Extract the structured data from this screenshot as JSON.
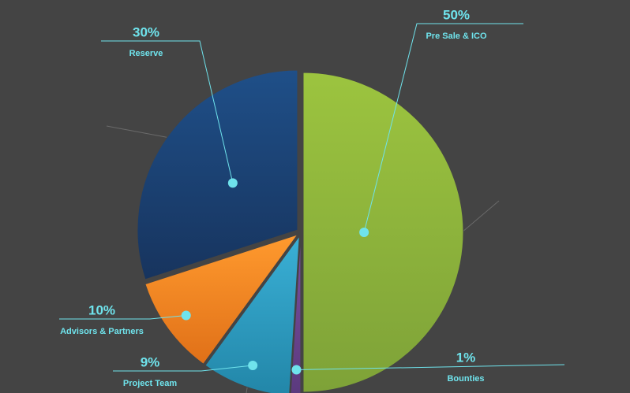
{
  "chart_data": {
    "type": "pie",
    "slices": [
      {
        "label": "Pre Sale & ICO",
        "value": 50,
        "display": "50%",
        "color": "#9cc43f",
        "color_dark": "#7ea238"
      },
      {
        "label": "Bounties",
        "value": 1,
        "display": "1%",
        "color": "#7b4fa0",
        "color_dark": "#5b3a7e"
      },
      {
        "label": "Project Team",
        "value": 9,
        "display": "9%",
        "color": "#3ab0d6",
        "color_dark": "#2286a8"
      },
      {
        "label": "Advisors & Partners",
        "value": 10,
        "display": "10%",
        "color": "#ff9a2e",
        "color_dark": "#e07018"
      },
      {
        "label": "Reserve",
        "value": 30,
        "display": "30%",
        "color": "#1f4f88",
        "color_dark": "#17345e"
      }
    ],
    "label_color": "#6fe3ec",
    "background": "#444444",
    "grid": false,
    "legend": "none"
  }
}
